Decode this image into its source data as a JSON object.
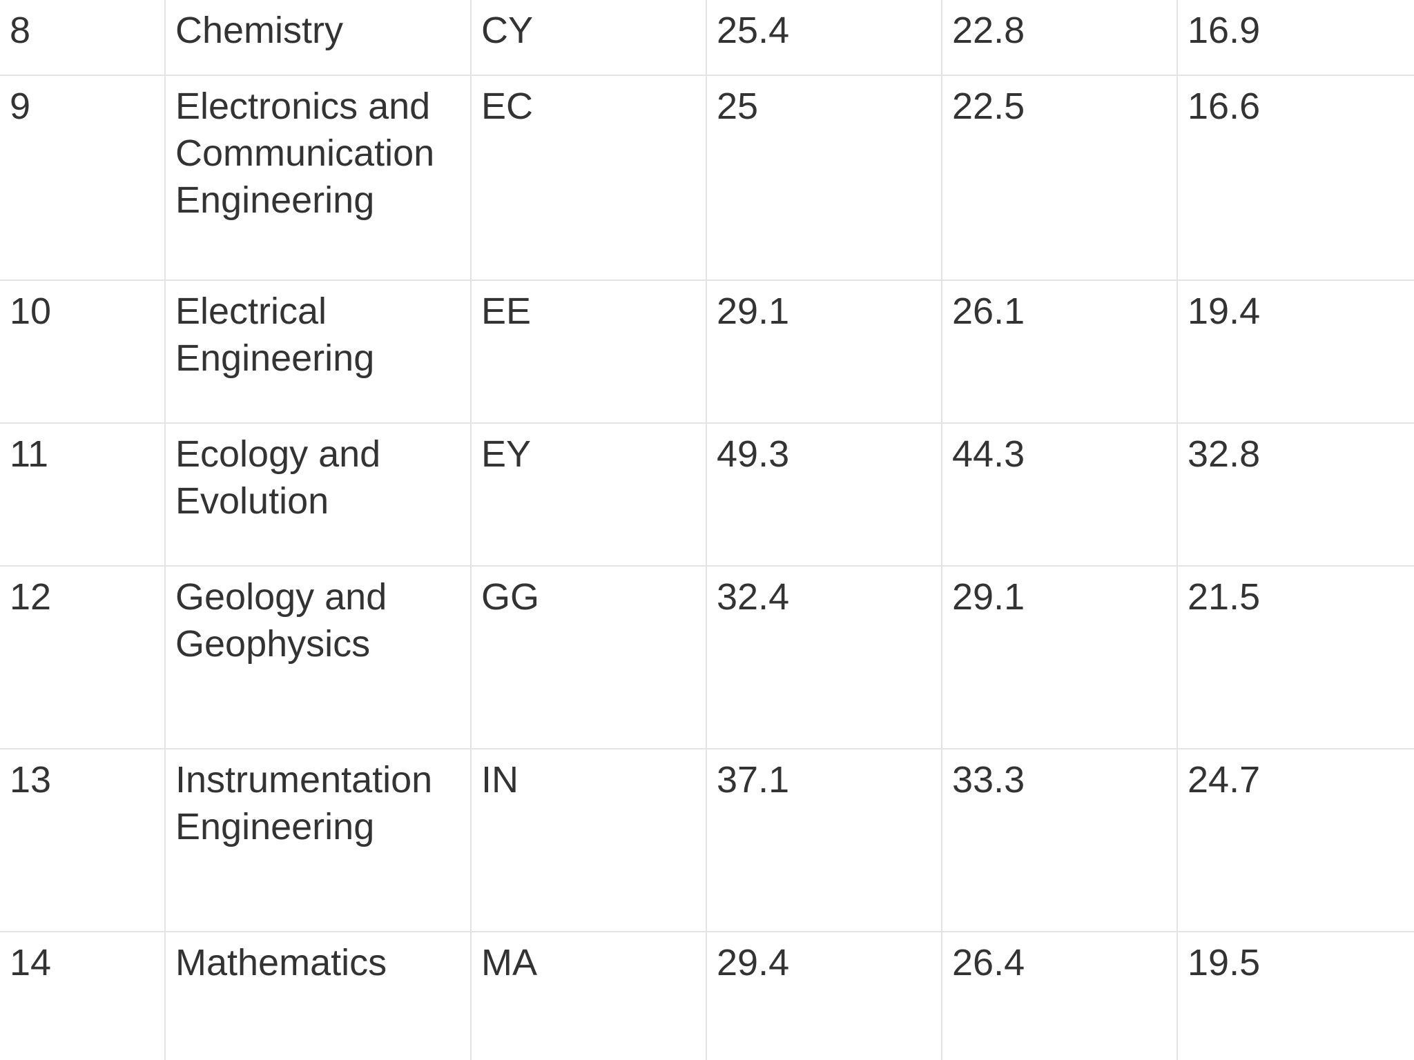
{
  "table": {
    "rows": [
      {
        "sno": "8",
        "paper": "Chemistry",
        "code": "CY",
        "v1": "25.4",
        "v2": "22.8",
        "v3": "16.9"
      },
      {
        "sno": "9",
        "paper": "Electronics and Communication Engineering",
        "code": "EC",
        "v1": "25",
        "v2": "22.5",
        "v3": "16.6"
      },
      {
        "sno": "10",
        "paper": "Electrical Engineering",
        "code": "EE",
        "v1": "29.1",
        "v2": "26.1",
        "v3": "19.4"
      },
      {
        "sno": "11",
        "paper": "Ecology and Evolution",
        "code": "EY",
        "v1": "49.3",
        "v2": "44.3",
        "v3": "32.8"
      },
      {
        "sno": "12",
        "paper": "Geology and Geophysics",
        "code": "GG",
        "v1": "32.4",
        "v2": "29.1",
        "v3": "21.5"
      },
      {
        "sno": "13",
        "paper": "Instrumentation Engineering",
        "code": "IN",
        "v1": "37.1",
        "v2": "33.3",
        "v3": "24.7"
      },
      {
        "sno": "14",
        "paper": "Mathematics",
        "code": "MA",
        "v1": "29.4",
        "v2": "26.4",
        "v3": "19.5"
      }
    ]
  }
}
